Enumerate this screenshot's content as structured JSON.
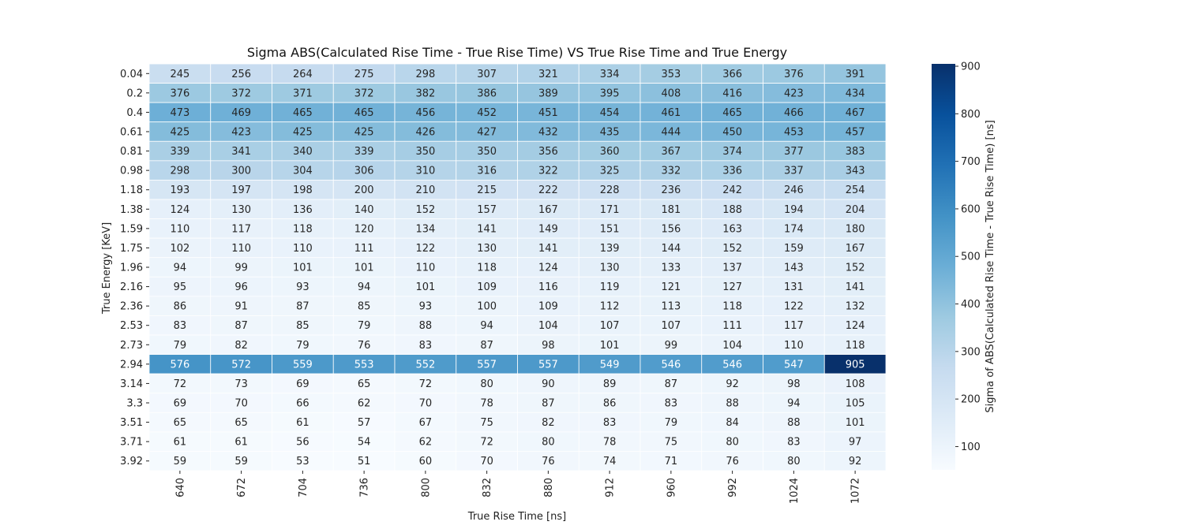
{
  "chart_data": {
    "type": "heatmap",
    "title": "Sigma ABS(Calculated Rise Time - True Rise Time) VS True Rise Time and True Energy",
    "xlabel": "True Rise Time [ns]",
    "ylabel": "True Energy [KeV]",
    "colorbar_label": "Sigma of ABS(Calculated Rise Time - True Rise Time) [ns]",
    "colorbar_ticks": [
      100,
      200,
      300,
      400,
      500,
      600,
      700,
      800,
      900
    ],
    "color_range": [
      51,
      905
    ],
    "colormap": "Blues",
    "colors": {
      "low": "#f7fbff",
      "high": "#08306b"
    },
    "x_categories": [
      "640",
      "672",
      "704",
      "736",
      "800",
      "832",
      "880",
      "912",
      "960",
      "992",
      "1024",
      "1072"
    ],
    "y_categories": [
      "0.04",
      "0.2",
      "0.4",
      "0.61",
      "0.81",
      "0.98",
      "1.18",
      "1.38",
      "1.59",
      "1.75",
      "1.96",
      "2.16",
      "2.36",
      "2.53",
      "2.73",
      "2.94",
      "3.14",
      "3.3",
      "3.51",
      "3.71",
      "3.92"
    ],
    "values": [
      [
        245,
        256,
        264,
        275,
        298,
        307,
        321,
        334,
        353,
        366,
        376,
        391
      ],
      [
        376,
        372,
        371,
        372,
        382,
        386,
        389,
        395,
        408,
        416,
        423,
        434
      ],
      [
        473,
        469,
        465,
        465,
        456,
        452,
        451,
        454,
        461,
        465,
        466,
        467
      ],
      [
        425,
        423,
        425,
        425,
        426,
        427,
        432,
        435,
        444,
        450,
        453,
        457
      ],
      [
        339,
        341,
        340,
        339,
        350,
        350,
        356,
        360,
        367,
        374,
        377,
        383
      ],
      [
        298,
        300,
        304,
        306,
        310,
        316,
        322,
        325,
        332,
        336,
        337,
        343
      ],
      [
        193,
        197,
        198,
        200,
        210,
        215,
        222,
        228,
        236,
        242,
        246,
        254
      ],
      [
        124,
        130,
        136,
        140,
        152,
        157,
        167,
        171,
        181,
        188,
        194,
        204
      ],
      [
        110,
        117,
        118,
        120,
        134,
        141,
        149,
        151,
        156,
        163,
        174,
        180
      ],
      [
        102,
        110,
        110,
        111,
        122,
        130,
        141,
        139,
        144,
        152,
        159,
        167
      ],
      [
        94,
        99,
        101,
        101,
        110,
        118,
        124,
        130,
        133,
        137,
        143,
        152
      ],
      [
        95,
        96,
        93,
        94,
        101,
        109,
        116,
        119,
        121,
        127,
        131,
        141
      ],
      [
        86,
        91,
        87,
        85,
        93,
        100,
        109,
        112,
        113,
        118,
        122,
        132
      ],
      [
        83,
        87,
        85,
        79,
        88,
        94,
        104,
        107,
        107,
        111,
        117,
        124
      ],
      [
        79,
        82,
        79,
        76,
        83,
        87,
        98,
        101,
        99,
        104,
        110,
        118
      ],
      [
        576,
        572,
        559,
        553,
        552,
        557,
        557,
        549,
        546,
        546,
        547,
        905
      ],
      [
        72,
        73,
        69,
        65,
        72,
        80,
        90,
        89,
        87,
        92,
        98,
        108
      ],
      [
        69,
        70,
        66,
        62,
        70,
        78,
        87,
        86,
        83,
        88,
        94,
        105
      ],
      [
        65,
        65,
        61,
        57,
        67,
        75,
        82,
        83,
        79,
        84,
        88,
        101
      ],
      [
        61,
        61,
        56,
        54,
        62,
        72,
        80,
        78,
        75,
        80,
        83,
        97
      ],
      [
        59,
        59,
        53,
        51,
        60,
        70,
        76,
        74,
        71,
        76,
        80,
        92
      ]
    ]
  }
}
